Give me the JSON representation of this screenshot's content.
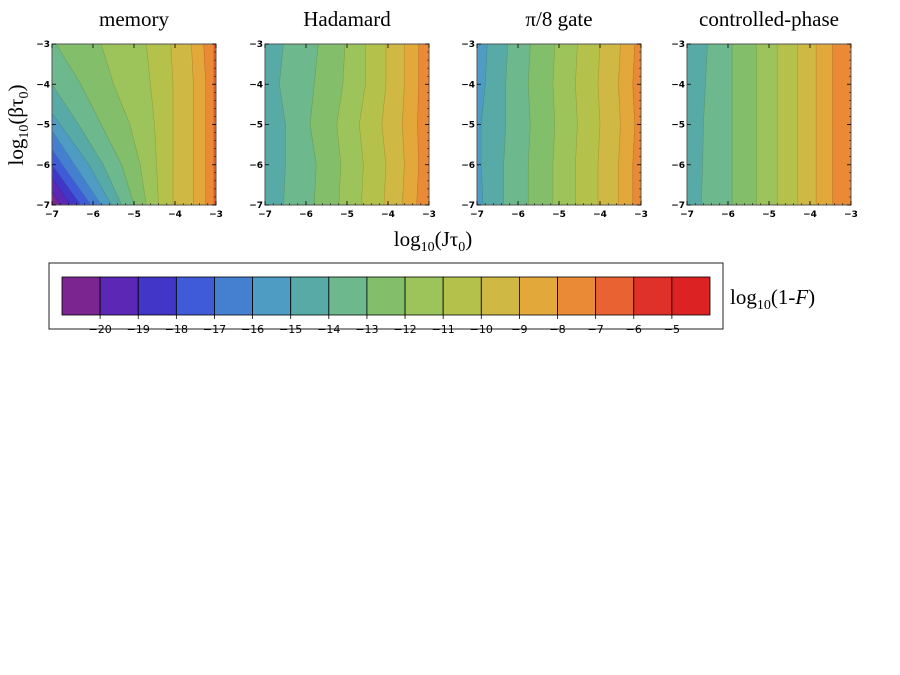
{
  "chart_data": {
    "type": "heatmap",
    "xlabel": {
      "base": "log",
      "sub": "10",
      "body": "(Jτ",
      "sub0": "0",
      "close": ")"
    },
    "ylabel": {
      "base": "log",
      "sub": "10",
      "body": "(βτ",
      "sub0": "0",
      "close": ")"
    },
    "colorbar_label": {
      "base": "log",
      "sub": "10",
      "pre": "(1-",
      "F": "F",
      "close": ")"
    },
    "x_ticks": [
      "−7",
      "−6",
      "−5",
      "−4",
      "−3"
    ],
    "y_ticks": [
      "−3",
      "−4",
      "−5",
      "−6",
      "−7"
    ],
    "xlim": [
      -7,
      -3
    ],
    "ylim": [
      -7,
      -3
    ],
    "panels": [
      {
        "title": "memory",
        "points": [
          {
            "y": -7,
            "boundaries": [
              -6.8,
              -6.55,
              -6.3,
              -6.05,
              -5.8,
              -5.55,
              -5.3,
              -5.0,
              -4.7,
              -4.4,
              -4.05,
              -3.55,
              -3.25,
              -3.05
            ]
          },
          {
            "y": -6,
            "boundaries": [
              -7.4,
              -7.2,
              -7.0,
              -6.75,
              -6.45,
              -6.1,
              -5.75,
              -5.3,
              -4.85,
              -4.45,
              -4.05,
              -3.55,
              -3.25,
              -3.05
            ]
          },
          {
            "y": -5,
            "boundaries": [
              -8.2,
              -8.0,
              -7.7,
              -7.4,
              -7.1,
              -6.8,
              -6.35,
              -5.8,
              -5.1,
              -4.5,
              -4.05,
              -3.55,
              -3.25,
              -3.05
            ]
          },
          {
            "y": -4,
            "boundaries": [
              -9.0,
              -8.8,
              -8.5,
              -8.2,
              -7.9,
              -7.5,
              -7.0,
              -6.3,
              -5.5,
              -4.6,
              -4.05,
              -3.55,
              -3.25,
              -3.05
            ]
          },
          {
            "y": -3,
            "boundaries": [
              -9.5,
              -9.3,
              -9.1,
              -8.8,
              -8.5,
              -8.0,
              -7.5,
              -6.9,
              -5.8,
              -4.7,
              -4.1,
              -3.6,
              -3.3,
              -3.05
            ]
          }
        ]
      },
      {
        "title": "Hadamard",
        "points": [
          {
            "y": -7,
            "boundaries": [
              -9.5,
              -9.2,
              -8.9,
              -8.6,
              -8.3,
              -8.0,
              -6.55,
              -5.8,
              -5.2,
              -4.65,
              -4.1,
              -3.65,
              -3.3,
              -2.5
            ]
          },
          {
            "y": -6,
            "boundaries": [
              -9.5,
              -9.2,
              -8.9,
              -8.6,
              -8.3,
              -8.0,
              -6.5,
              -5.75,
              -5.15,
              -4.6,
              -4.05,
              -3.6,
              -3.25,
              -2.5
            ]
          },
          {
            "y": -5,
            "boundaries": [
              -9.5,
              -9.2,
              -8.9,
              -8.6,
              -8.3,
              -8.0,
              -6.5,
              -5.9,
              -5.25,
              -4.7,
              -4.15,
              -3.65,
              -3.28,
              -2.5
            ]
          },
          {
            "y": -4,
            "boundaries": [
              -9.5,
              -9.2,
              -8.9,
              -8.6,
              -8.3,
              -8.0,
              -6.65,
              -5.8,
              -5.1,
              -4.55,
              -4.05,
              -3.6,
              -3.25,
              -2.5
            ]
          },
          {
            "y": -3,
            "boundaries": [
              -9.5,
              -9.2,
              -8.9,
              -8.6,
              -8.3,
              -8.0,
              -6.55,
              -5.7,
              -5.05,
              -4.55,
              -4.05,
              -3.6,
              -3.25,
              -2.5
            ]
          }
        ]
      },
      {
        "title": "π/8 gate",
        "points": [
          {
            "y": -7,
            "boundaries": [
              -9.5,
              -9.2,
              -8.9,
              -8.6,
              -8.3,
              -6.85,
              -6.35,
              -5.75,
              -5.15,
              -4.6,
              -4.05,
              -3.55,
              -3.2,
              -2.5
            ]
          },
          {
            "y": -6,
            "boundaries": [
              -9.5,
              -9.2,
              -8.9,
              -8.6,
              -8.3,
              -6.9,
              -6.35,
              -5.75,
              -5.15,
              -4.6,
              -4.05,
              -3.55,
              -3.2,
              -2.5
            ]
          },
          {
            "y": -5,
            "boundaries": [
              -9.5,
              -9.2,
              -8.9,
              -8.6,
              -8.3,
              -6.9,
              -6.3,
              -5.7,
              -5.1,
              -4.55,
              -4.0,
              -3.5,
              -3.15,
              -2.5
            ]
          },
          {
            "y": -4,
            "boundaries": [
              -9.5,
              -9.2,
              -8.9,
              -8.6,
              -8.3,
              -6.8,
              -6.3,
              -5.75,
              -5.15,
              -4.6,
              -4.05,
              -3.55,
              -3.2,
              -2.5
            ]
          },
          {
            "y": -3,
            "boundaries": [
              -9.5,
              -9.2,
              -8.9,
              -8.6,
              -8.3,
              -6.75,
              -6.25,
              -5.7,
              -5.1,
              -4.55,
              -4.0,
              -3.5,
              -3.15,
              -2.5
            ]
          }
        ]
      },
      {
        "title": "controlled-phase",
        "points": [
          {
            "y": -7,
            "boundaries": [
              -9.5,
              -9.2,
              -8.9,
              -8.6,
              -8.3,
              -8.0,
              -6.65,
              -5.9,
              -5.3,
              -4.8,
              -4.3,
              -3.85,
              -3.45,
              -2.5
            ]
          },
          {
            "y": -6,
            "boundaries": [
              -9.5,
              -9.2,
              -8.9,
              -8.6,
              -8.3,
              -8.0,
              -6.62,
              -5.9,
              -5.3,
              -4.8,
              -4.3,
              -3.85,
              -3.45,
              -2.5
            ]
          },
          {
            "y": -5,
            "boundaries": [
              -9.5,
              -9.2,
              -8.9,
              -8.6,
              -8.3,
              -8.0,
              -6.6,
              -5.9,
              -5.3,
              -4.8,
              -4.3,
              -3.85,
              -3.45,
              -2.5
            ]
          },
          {
            "y": -4,
            "boundaries": [
              -9.5,
              -9.2,
              -8.9,
              -8.6,
              -8.3,
              -8.0,
              -6.55,
              -5.9,
              -5.3,
              -4.8,
              -4.3,
              -3.85,
              -3.45,
              -2.5
            ]
          },
          {
            "y": -3,
            "boundaries": [
              -9.5,
              -9.2,
              -8.9,
              -8.6,
              -8.3,
              -8.0,
              -6.5,
              -5.9,
              -5.3,
              -4.8,
              -4.3,
              -3.85,
              -3.45,
              -2.5
            ]
          }
        ]
      }
    ],
    "colorbar": {
      "colors": [
        "#7b2590",
        "#5b27b4",
        "#4236c8",
        "#3f5bd8",
        "#4580d0",
        "#4e9cc4",
        "#58aaa6",
        "#6db88c",
        "#83bf6b",
        "#9dc35b",
        "#b4c24c",
        "#cfb843",
        "#e2a83a",
        "#eb8a36",
        "#e86232",
        "#e0302a",
        "#dc2222"
      ],
      "tick_labels": [
        "−20",
        "−19",
        "−18",
        "−17",
        "−16",
        "−15",
        "−14",
        "−13",
        "−12",
        "−11",
        "−10",
        "−9",
        "−8",
        "−7",
        "−6",
        "−5"
      ]
    }
  }
}
